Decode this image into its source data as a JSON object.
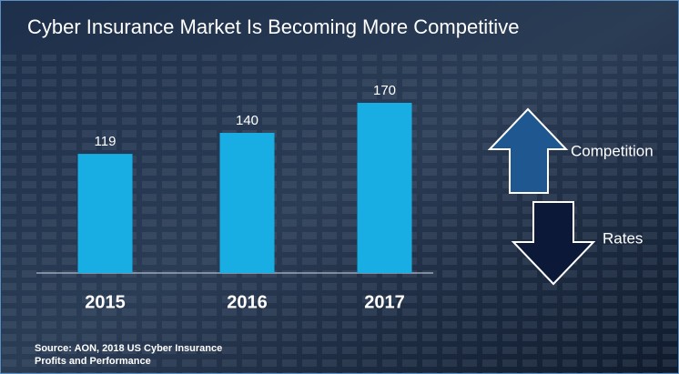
{
  "chart_data": {
    "type": "bar",
    "title": "Cyber Insurance Market Is Becoming More Competitive",
    "categories": [
      "2015",
      "2016",
      "2017"
    ],
    "values": [
      119,
      140,
      170
    ],
    "color": "#19aee3",
    "annotations": [
      "Competition",
      "Rates"
    ],
    "source": [
      "Source: AON, 2018 US Cyber Insurance",
      "Profits and Performance"
    ]
  }
}
